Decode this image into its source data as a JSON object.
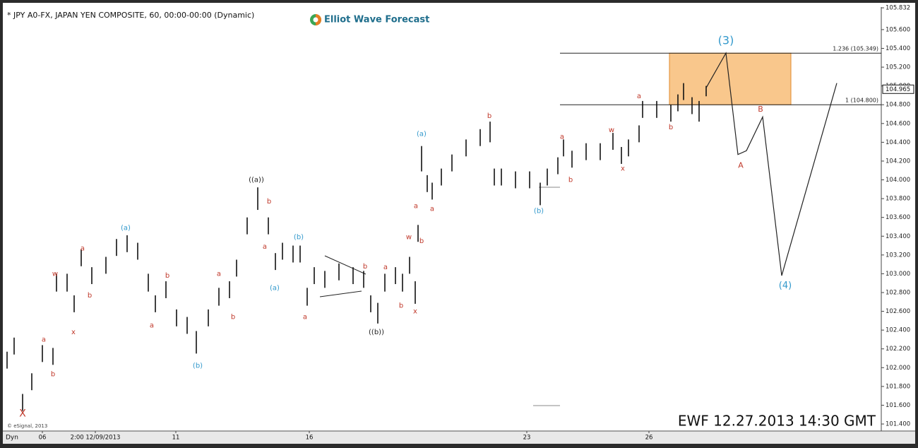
{
  "chart_data": {
    "type": "ohlc",
    "title": "* JPY A0-FX, JAPAN YEN COMPOSITE, 60, 00:00-00:00 (Dynamic)",
    "logo": "Elliot Wave Forecast",
    "watermark": "EWF 12.27.2013  14:30 GMT",
    "copyright": "© eSignal, 2013",
    "mode_label": "Dyn",
    "color": "#111111",
    "xlim": [
      0,
      1240
    ],
    "xticks": [
      {
        "value": 52,
        "label": "06"
      },
      {
        "value": 127,
        "label": "2:00 12/09/2013"
      },
      {
        "value": 241,
        "label": "11"
      },
      {
        "value": 430,
        "label": "16"
      },
      {
        "value": 738,
        "label": "23"
      },
      {
        "value": 911,
        "label": "26"
      }
    ],
    "ylim": [
      101.325,
      105.84
    ],
    "yticks": [
      {
        "value": 101.4,
        "label": "101.400"
      },
      {
        "value": 101.6,
        "label": "101.600"
      },
      {
        "value": 101.8,
        "label": "101.800"
      },
      {
        "value": 102.0,
        "label": "102.000"
      },
      {
        "value": 102.2,
        "label": "102.200"
      },
      {
        "value": 102.4,
        "label": "102.400"
      },
      {
        "value": 102.6,
        "label": "102.600"
      },
      {
        "value": 102.8,
        "label": "102.800"
      },
      {
        "value": 103.0,
        "label": "103.000"
      },
      {
        "value": 103.2,
        "label": "103.200"
      },
      {
        "value": 103.4,
        "label": "103.400"
      },
      {
        "value": 103.6,
        "label": "103.600"
      },
      {
        "value": 103.8,
        "label": "103.800"
      },
      {
        "value": 104.0,
        "label": "104.000"
      },
      {
        "value": 104.2,
        "label": "104.200"
      },
      {
        "value": 104.4,
        "label": "104.400"
      },
      {
        "value": 104.6,
        "label": "104.600"
      },
      {
        "value": 104.8,
        "label": "104.800"
      },
      {
        "value": 105.0,
        "label": "105.000"
      },
      {
        "value": 105.2,
        "label": "105.200"
      },
      {
        "value": 105.4,
        "label": "105.400"
      },
      {
        "value": 105.6,
        "label": "105.600"
      },
      {
        "value": 105.832,
        "label": "105.832"
      }
    ],
    "last_price": {
      "value": 104.965,
      "label": "104.965"
    },
    "bars": {
      "x": [
        2,
        12,
        24,
        37,
        52,
        67,
        72,
        87,
        97,
        107,
        122,
        142,
        157,
        172,
        187,
        202,
        212,
        227,
        242,
        257,
        270,
        287,
        302,
        317,
        327,
        342,
        357,
        372,
        382,
        392,
        407,
        417,
        427,
        437,
        452,
        472,
        492,
        507,
        517,
        527,
        537,
        552,
        562,
        572,
        580,
        584,
        589,
        597,
        604,
        617,
        632,
        652,
        672,
        686,
        692,
        702,
        722,
        742,
        757,
        767,
        782,
        790,
        802,
        822,
        842,
        860,
        872,
        882,
        897,
        902,
        922,
        942,
        952,
        960,
        972,
        982,
        992
      ],
      "high": [
        102.17,
        102.32,
        101.72,
        101.94,
        102.24,
        102.21,
        103.0,
        103.0,
        102.77,
        103.26,
        103.07,
        103.18,
        103.37,
        103.41,
        103.33,
        103.0,
        102.77,
        102.92,
        102.62,
        102.54,
        102.39,
        102.62,
        102.85,
        102.92,
        103.15,
        103.6,
        103.92,
        103.6,
        103.22,
        103.33,
        103.3,
        103.3,
        102.85,
        103.07,
        103.03,
        103.11,
        103.07,
        103.03,
        102.77,
        102.69,
        103.0,
        103.07,
        103.0,
        103.18,
        102.92,
        103.52,
        104.36,
        104.05,
        103.97,
        104.12,
        104.27,
        104.43,
        104.54,
        104.62,
        104.12,
        104.12,
        104.09,
        104.09,
        103.97,
        104.12,
        104.24,
        104.43,
        104.31,
        104.39,
        104.39,
        104.5,
        104.35,
        104.43,
        104.58,
        104.84,
        104.84,
        104.8,
        104.91,
        105.03,
        104.88,
        104.84,
        105.0
      ],
      "low": [
        101.99,
        102.14,
        101.54,
        101.76,
        102.06,
        102.03,
        102.81,
        102.81,
        102.59,
        103.08,
        102.89,
        103.0,
        103.19,
        103.23,
        103.15,
        102.81,
        102.59,
        102.74,
        102.44,
        102.36,
        102.15,
        102.44,
        102.66,
        102.74,
        102.97,
        103.42,
        103.68,
        103.42,
        103.04,
        103.15,
        103.12,
        103.12,
        102.66,
        102.89,
        102.85,
        102.93,
        102.89,
        102.85,
        102.59,
        102.47,
        102.81,
        102.89,
        102.81,
        103.0,
        102.68,
        103.34,
        104.09,
        103.87,
        103.79,
        103.94,
        104.09,
        104.25,
        104.36,
        104.4,
        103.94,
        103.94,
        103.91,
        103.91,
        103.73,
        103.94,
        104.06,
        104.25,
        104.13,
        104.21,
        104.21,
        104.32,
        104.17,
        104.25,
        104.4,
        104.66,
        104.66,
        104.62,
        104.73,
        104.85,
        104.7,
        104.62,
        104.89
      ]
    },
    "projection": {
      "x": [
        992,
        1020,
        1037,
        1049,
        1072,
        1099,
        1177
      ],
      "values": [
        104.98,
        105.35,
        104.27,
        104.31,
        104.67,
        102.98,
        105.03
      ],
      "color": "#222222"
    },
    "levels": [
      {
        "value": 105.349,
        "label": "1.236 (105.349)"
      },
      {
        "value": 104.8,
        "label": "1 (104.800)"
      }
    ],
    "levels_start_x": 785,
    "target_zone": {
      "x": [
        940,
        1112
      ],
      "color": "#f9c78c"
    },
    "annotations": [
      {
        "text": "X",
        "x": 24,
        "y": 101.51,
        "color": "#c0392b",
        "size": 14
      },
      {
        "text": "a",
        "x": 54,
        "y": 102.3,
        "color": "#c0392b",
        "size": 10
      },
      {
        "text": "b",
        "x": 67,
        "y": 101.93,
        "color": "#c0392b",
        "size": 10
      },
      {
        "text": "w",
        "x": 70,
        "y": 103.0,
        "color": "#c0392b",
        "size": 10
      },
      {
        "text": "x",
        "x": 96,
        "y": 102.38,
        "color": "#c0392b",
        "size": 10
      },
      {
        "text": "a",
        "x": 109,
        "y": 103.27,
        "color": "#c0392b",
        "size": 10
      },
      {
        "text": "b",
        "x": 119,
        "y": 102.77,
        "color": "#c0392b",
        "size": 10
      },
      {
        "text": "(a)",
        "x": 170,
        "y": 103.49,
        "color": "#3399cc",
        "size": 10
      },
      {
        "text": "a",
        "x": 207,
        "y": 102.45,
        "color": "#c0392b",
        "size": 10
      },
      {
        "text": "b",
        "x": 229,
        "y": 102.98,
        "color": "#c0392b",
        "size": 10
      },
      {
        "text": "(b)",
        "x": 272,
        "y": 102.02,
        "color": "#3399cc",
        "size": 10
      },
      {
        "text": "a",
        "x": 302,
        "y": 103.0,
        "color": "#c0392b",
        "size": 10
      },
      {
        "text": "b",
        "x": 322,
        "y": 102.54,
        "color": "#c0392b",
        "size": 10
      },
      {
        "text": "((a))",
        "x": 355,
        "y": 104.0,
        "color": "#222222",
        "size": 10
      },
      {
        "text": "b",
        "x": 373,
        "y": 103.77,
        "color": "#c0392b",
        "size": 10
      },
      {
        "text": "a",
        "x": 367,
        "y": 103.29,
        "color": "#c0392b",
        "size": 10
      },
      {
        "text": "(a)",
        "x": 381,
        "y": 102.85,
        "color": "#3399cc",
        "size": 10
      },
      {
        "text": "(b)",
        "x": 415,
        "y": 103.39,
        "color": "#3399cc",
        "size": 10
      },
      {
        "text": "a",
        "x": 424,
        "y": 102.54,
        "color": "#c0392b",
        "size": 10
      },
      {
        "text": "b",
        "x": 509,
        "y": 103.08,
        "color": "#c0392b",
        "size": 10
      },
      {
        "text": "((b))",
        "x": 525,
        "y": 102.38,
        "color": "#222222",
        "size": 10
      },
      {
        "text": "a",
        "x": 538,
        "y": 103.07,
        "color": "#c0392b",
        "size": 10
      },
      {
        "text": "b",
        "x": 560,
        "y": 102.66,
        "color": "#c0392b",
        "size": 10
      },
      {
        "text": "w",
        "x": 571,
        "y": 103.39,
        "color": "#c0392b",
        "size": 10
      },
      {
        "text": "x",
        "x": 580,
        "y": 102.6,
        "color": "#c0392b",
        "size": 10
      },
      {
        "text": "a",
        "x": 581,
        "y": 103.72,
        "color": "#c0392b",
        "size": 10
      },
      {
        "text": "b",
        "x": 589,
        "y": 103.35,
        "color": "#c0392b",
        "size": 10
      },
      {
        "text": "(a)",
        "x": 589,
        "y": 104.49,
        "color": "#3399cc",
        "size": 10
      },
      {
        "text": "a",
        "x": 604,
        "y": 103.69,
        "color": "#c0392b",
        "size": 10
      },
      {
        "text": "b",
        "x": 685,
        "y": 104.68,
        "color": "#c0392b",
        "size": 10
      },
      {
        "text": "(b)",
        "x": 755,
        "y": 103.67,
        "color": "#3399cc",
        "size": 10
      },
      {
        "text": "a",
        "x": 788,
        "y": 104.46,
        "color": "#c0392b",
        "size": 10
      },
      {
        "text": "b",
        "x": 800,
        "y": 104.0,
        "color": "#c0392b",
        "size": 10
      },
      {
        "text": "w",
        "x": 858,
        "y": 104.53,
        "color": "#c0392b",
        "size": 10
      },
      {
        "text": "x",
        "x": 874,
        "y": 104.12,
        "color": "#c0392b",
        "size": 10
      },
      {
        "text": "a",
        "x": 897,
        "y": 104.89,
        "color": "#c0392b",
        "size": 10
      },
      {
        "text": "b",
        "x": 942,
        "y": 104.56,
        "color": "#c0392b",
        "size": 10
      },
      {
        "text": "(3)",
        "x": 1020,
        "y": 105.48,
        "color": "#3399cc",
        "size": 16
      },
      {
        "text": "A",
        "x": 1041,
        "y": 104.15,
        "color": "#c0392b",
        "size": 11
      },
      {
        "text": "B",
        "x": 1069,
        "y": 104.75,
        "color": "#c0392b",
        "size": 11
      },
      {
        "text": "(4)",
        "x": 1104,
        "y": 102.87,
        "color": "#3399cc",
        "size": 13
      }
    ]
  }
}
